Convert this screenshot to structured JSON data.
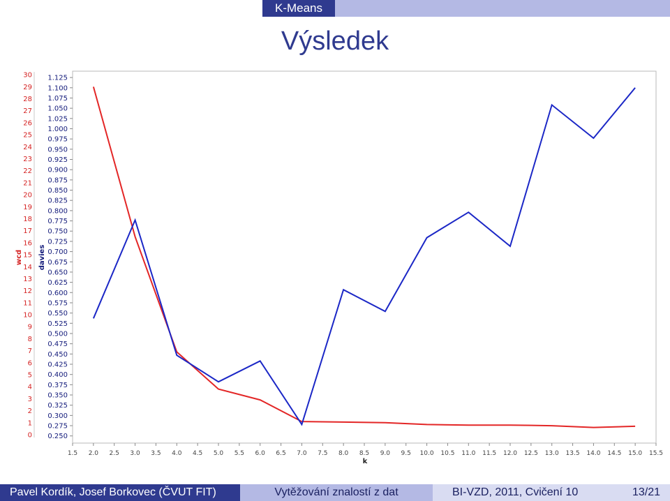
{
  "header": {
    "section": "K-Means"
  },
  "slide": {
    "title": "Výsledek"
  },
  "footer": {
    "authors": "Pavel Kordík, Josef Borkovec (ČVUT FIT)",
    "course_name": "Vytěžování znalostí z dat",
    "course_info": "BI-VZD, 2011, Cvičení 10",
    "page": "13/21"
  },
  "colors": {
    "primary": "#2f3a8f",
    "secondary": "#b4b9e4",
    "wcd_line": "#e32626",
    "davies_line": "#1b27c6",
    "wcd_axis": "#d42020",
    "davies_axis": "#121a7a"
  },
  "chart_data": {
    "type": "line",
    "xlabel": "k",
    "x_ticks": [
      "1.5",
      "2.0",
      "2.5",
      "3.0",
      "3.5",
      "4.0",
      "4.5",
      "5.0",
      "5.5",
      "6.0",
      "6.5",
      "7.0",
      "7.5",
      "8.0",
      "8.5",
      "9.0",
      "9.5",
      "10.0",
      "10.5",
      "11.0",
      "11.5",
      "12.0",
      "12.5",
      "13.0",
      "13.5",
      "14.0",
      "14.5",
      "15.0",
      "15.5"
    ],
    "xlim": [
      1.5,
      15.5
    ],
    "x": [
      2,
      3,
      4,
      5,
      6,
      7,
      8,
      9,
      10,
      11,
      12,
      13,
      14,
      15
    ],
    "y_axes": [
      {
        "label": "wcd",
        "ylim": [
          -0.7,
          30.3
        ],
        "ticks": [
          "0",
          "1",
          "2",
          "3",
          "4",
          "5",
          "6",
          "7",
          "8",
          "9",
          "10",
          "11",
          "12",
          "13",
          "14",
          "15",
          "16",
          "17",
          "18",
          "19",
          "20",
          "21",
          "22",
          "23",
          "24",
          "25",
          "26",
          "27",
          "28",
          "29",
          "30"
        ]
      },
      {
        "label": "davies",
        "ylim": [
          0.2325,
          1.1405
        ],
        "ticks": [
          "0.250",
          "0.275",
          "0.300",
          "0.325",
          "0.350",
          "0.375",
          "0.400",
          "0.425",
          "0.450",
          "0.475",
          "0.500",
          "0.525",
          "0.550",
          "0.575",
          "0.600",
          "0.625",
          "0.650",
          "0.675",
          "0.700",
          "0.725",
          "0.750",
          "0.775",
          "0.800",
          "0.825",
          "0.850",
          "0.875",
          "0.900",
          "0.925",
          "0.950",
          "0.975",
          "1.000",
          "1.025",
          "1.050",
          "1.075",
          "1.100",
          "1.125"
        ]
      }
    ],
    "series": [
      {
        "name": "wcd",
        "axis": 0,
        "values": [
          29.0,
          16.5,
          6.9,
          3.8,
          2.9,
          1.1,
          1.05,
          1.0,
          0.85,
          0.8,
          0.8,
          0.75,
          0.6,
          0.7
        ]
      },
      {
        "name": "davies",
        "axis": 1,
        "values": [
          0.537,
          0.777,
          0.447,
          0.382,
          0.433,
          0.278,
          0.607,
          0.554,
          0.734,
          0.796,
          0.713,
          1.058,
          0.977,
          1.1
        ]
      }
    ],
    "grid": false
  }
}
